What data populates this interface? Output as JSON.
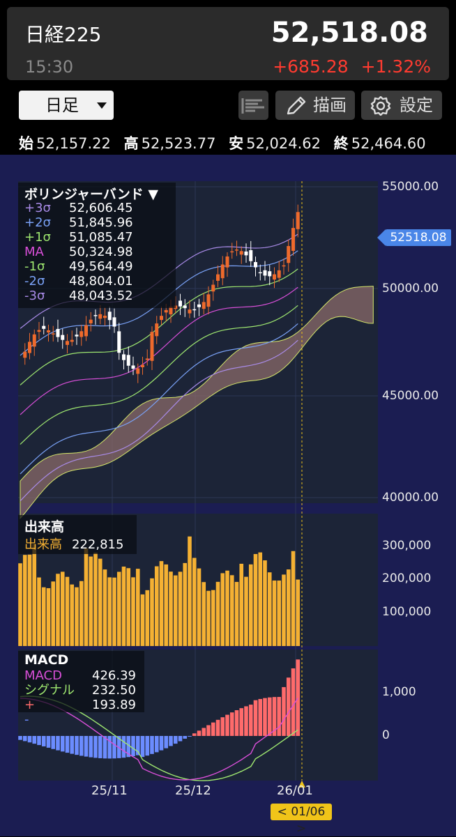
{
  "header": {
    "name": "日経225",
    "price": "52,518.08",
    "time": "15:30",
    "change": "+685.28",
    "change_pct": "+1.32%"
  },
  "toolbar": {
    "period": "日足",
    "draw_label": "描画",
    "settings_label": "設定"
  },
  "ohlc": [
    {
      "key": "始",
      "value": "52,157.22"
    },
    {
      "key": "高",
      "value": "52,523.77"
    },
    {
      "key": "安",
      "value": "52,024.62"
    },
    {
      "key": "終",
      "value": "52,464.60"
    }
  ],
  "bollinger": {
    "title": "ボリンジャーバンド ▼",
    "rows": [
      {
        "name": "+3σ",
        "value": "52,606.45",
        "color": "#a98be8"
      },
      {
        "name": "+2σ",
        "value": "51,845.96",
        "color": "#7aa2f7"
      },
      {
        "name": "+1σ",
        "value": "51,085.47",
        "color": "#9fe870"
      },
      {
        "name": "MA",
        "value": "50,324.98",
        "color": "#d94fd9"
      },
      {
        "name": "-1σ",
        "value": "49,564.49",
        "color": "#9fe870"
      },
      {
        "name": "-2σ",
        "value": "48,804.01",
        "color": "#7aa2f7"
      },
      {
        "name": "-3σ",
        "value": "48,043.52",
        "color": "#a98be8"
      }
    ]
  },
  "price_axis": [
    "55000.00",
    "50000.00",
    "45000.00",
    "40000.00"
  ],
  "current_price_tag": "52518.08",
  "volume": {
    "title": "出来高",
    "name": "出来高",
    "value": "222,815",
    "axis": [
      "300,000",
      "200,000",
      "100,000"
    ]
  },
  "macd": {
    "title": "MACD",
    "rows": [
      {
        "name": "MACD",
        "value": "426.39",
        "color": "#d94fd9"
      },
      {
        "name": "シグナル",
        "value": "232.50",
        "color": "#9fe870"
      },
      {
        "name": "+",
        "value": "193.89",
        "color": "#ff6b6b"
      },
      {
        "name": "-",
        "value": "",
        "color": "#6b8cff"
      }
    ],
    "axis": [
      "1,000",
      "0"
    ]
  },
  "dates": [
    "25/11",
    "25/12",
    "26/01"
  ],
  "cursor_date": "< 01/06 >",
  "colors": {
    "up": "#ee6a2c",
    "down": "#ffffff",
    "volume": "#f5b133",
    "cloud": "#8a6a6a",
    "background": "#1b1d52",
    "panel": "#1c2437",
    "price_up": "#ff3b30"
  }
}
